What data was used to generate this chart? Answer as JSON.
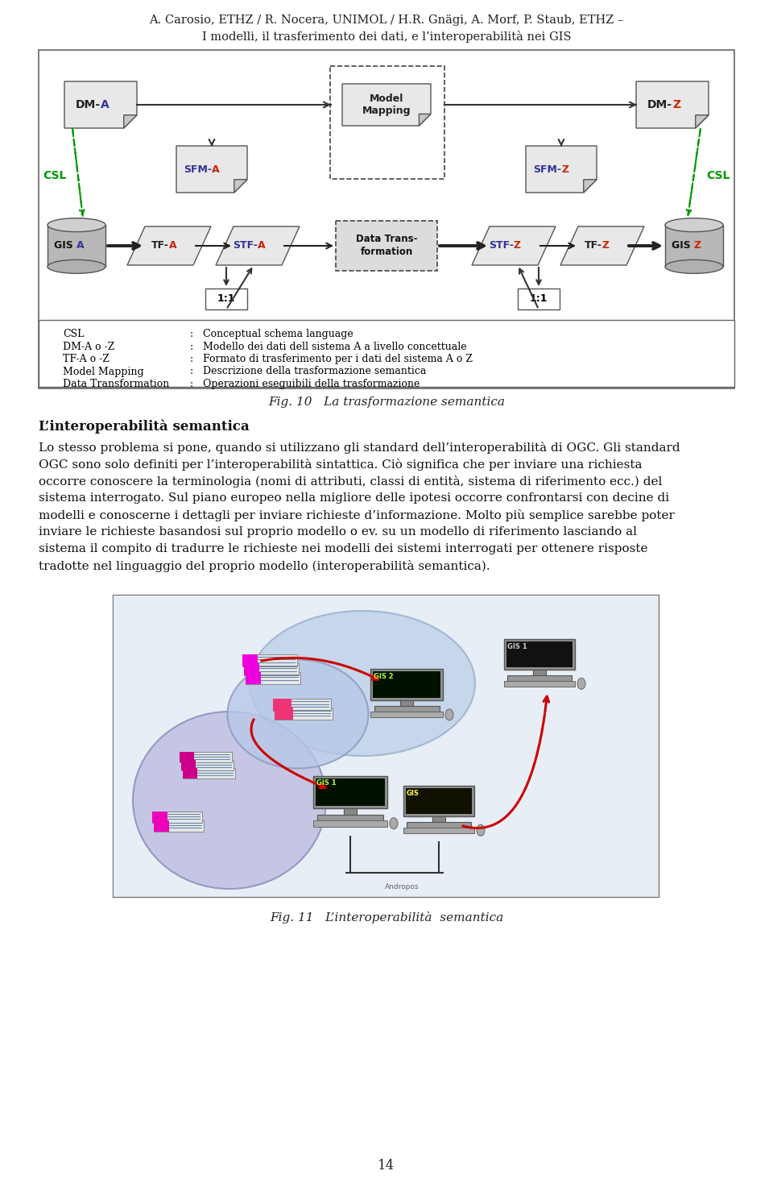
{
  "bg_color": "#ffffff",
  "page_width": 9.6,
  "page_height": 14.63,
  "header_line1": "A. Carosio, ETHZ / R. Nocera, UNIMOL / H.R. Gnägi, A. Morf, P. Staub, ETHZ –",
  "header_line2": "I modelli, il trasferimento dei dati, e l’interoperabilità nei GIS",
  "fig10_caption": "Fig. 10   La trasformazione semantica",
  "fig11_caption": "Fig. 11   L’interoperabilità  semantica",
  "section_title": "L’interoperabilità semantica",
  "body_lines": [
    "Lo stesso problema si pone, quando si utilizzano gli standard dell’interoperabilità di OGC. Gli standard",
    "OGC sono solo definiti per l’interoperabilità sintattica. Ciò significa che per inviare una richiesta",
    "occorre conoscere la terminologia (nomi di attributi, classi di entità, sistema di riferimento ecc.) del",
    "sistema interrogato. Sul piano europeo nella migliore delle ipotesi occorre confrontarsi con decine di",
    "modelli e conoscerne i dettagli per inviare richieste d’informazione. Molto più semplice sarebbe poter",
    "inviare le richieste basandosi sul proprio modello o ev. su un modello di riferimento lasciando al",
    "sistema il compito di tradurre le richieste nei modelli dei sistemi interrogati per ottenere risposte",
    "tradotte nel linguaggio del proprio modello (interoperabilità semantica)."
  ],
  "legend_items": [
    [
      "CSL",
      "Conceptual schema language"
    ],
    [
      "DM-A o -Z",
      "Modello dei dati dell sistema A a livello concettuale"
    ],
    [
      "TF-A o -Z",
      "Formato di trasferimento per i dati del sistema A o Z"
    ],
    [
      "Model Mapping",
      "Descrizione della trasformazione semantica"
    ],
    [
      "Data Transformation",
      "Operazioni eseguibili della trasformazione"
    ]
  ],
  "page_number": "14"
}
